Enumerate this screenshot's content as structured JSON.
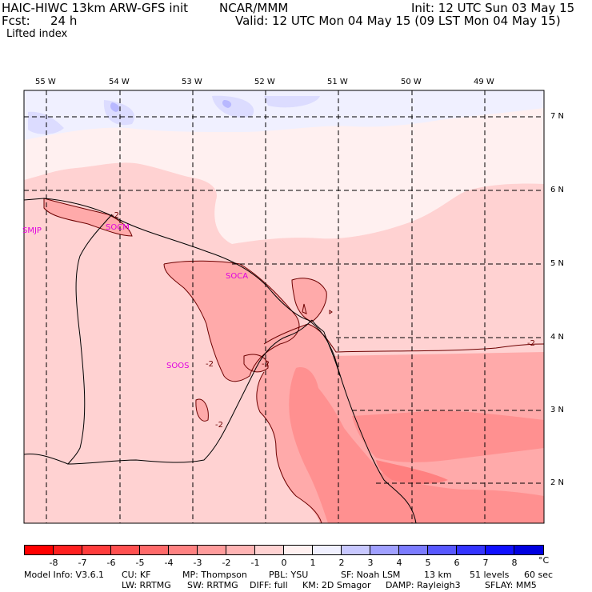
{
  "header": {
    "title": "HAIC-HIWC 13km ARW-GFS init",
    "org": "NCAR/MMM",
    "init": "Init: 12 UTC Sun 03 May 15",
    "fcst_label": "Fcst:",
    "fcst_value": "24 h",
    "valid": "Valid: 12 UTC Mon 04 May 15 (09 LST Mon 04 May 15)",
    "field": "Lifted index"
  },
  "map": {
    "lon_labels": [
      "55 W",
      "54 W",
      "53 W",
      "52 W",
      "51 W",
      "50 W",
      "49 W"
    ],
    "lat_labels": [
      "7 N",
      "6 N",
      "5 N",
      "4 N",
      "3 N",
      "2 N"
    ],
    "stations": [
      "SMJP",
      "SOCM",
      "SOCA",
      "SOOS"
    ],
    "contour_labels": [
      "-2",
      "-2",
      "-2",
      "-2",
      "-2"
    ],
    "colors": {
      "pos1": "#dcdcff",
      "pos2": "#f0f0ff",
      "neutral": "#fff0f0",
      "neg1": "#ffd2d2",
      "neg2": "#ffaaaa",
      "neg3": "#ff9090",
      "neg4": "#ff7070"
    }
  },
  "colorbar": {
    "labels": [
      "-8",
      "-7",
      "-6",
      "-5",
      "-4",
      "-3",
      "-2",
      "-1",
      "0",
      "1",
      "2",
      "3",
      "4",
      "5",
      "6",
      "7",
      "8"
    ],
    "unit": "°C",
    "colors": [
      "#ff0000",
      "#ff2020",
      "#ff3c3c",
      "#ff5050",
      "#ff6a6a",
      "#ff8282",
      "#ff9c9c",
      "#ffb4b4",
      "#ffd2d2",
      "#fff0f0",
      "#f0f0ff",
      "#c8c8ff",
      "#a0a0ff",
      "#7c7cff",
      "#5858ff",
      "#3434ff",
      "#1010ff",
      "#0000e0"
    ]
  },
  "footer": {
    "line1": [
      "Model Info: V3.6.1",
      "CU: KF",
      "MP: Thompson",
      "PBL: YSU",
      "SF: Noah LSM",
      "13 km",
      "51 levels",
      "60 sec"
    ],
    "line2": [
      "LW: RRTMG",
      "SW: RRTMG",
      "DIFF: full",
      "KM: 2D Smagor",
      "DAMP: Rayleigh3",
      "SFLAY: MM5"
    ]
  }
}
